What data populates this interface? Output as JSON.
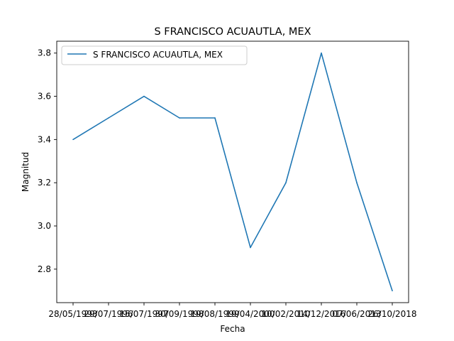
{
  "chart_data": {
    "type": "line",
    "title": "S FRANCISCO ACUAUTLA, MEX",
    "xlabel": "Fecha",
    "ylabel": "Magnitud",
    "categories": [
      "28/05/1993",
      "29/07/1996",
      "15/07/1997",
      "30/09/1998",
      "19/08/1999",
      "19/04/2000",
      "10/02/2010",
      "14/12/2016",
      "07/06/2013",
      "26/10/2018"
    ],
    "series": [
      {
        "name": "S FRANCISCO ACUAUTLA, MEX",
        "color": "#1f77b4",
        "values": [
          3.4,
          3.5,
          3.6,
          3.5,
          3.5,
          2.9,
          3.2,
          3.8,
          3.2,
          2.7
        ]
      }
    ],
    "ylim": [
      2.645,
      3.855
    ],
    "yticks": [
      "2.8",
      "3.0",
      "3.2",
      "3.4",
      "3.6",
      "3.8"
    ],
    "legend_position": "top-left",
    "grid": false
  }
}
